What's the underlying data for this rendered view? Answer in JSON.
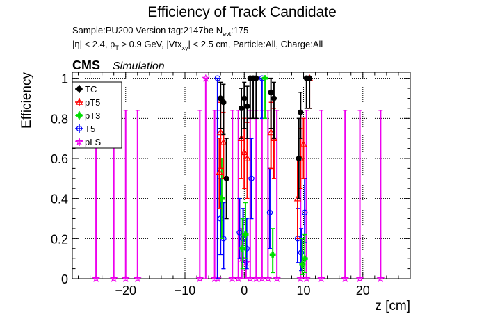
{
  "title": "Efficiency of Track Candidate",
  "subtitle_parts": {
    "sample": "Sample:PU200   Version tag:2147be  N",
    "nevt_sub": "evt",
    "nevt_val": ":175"
  },
  "cuts_parts": [
    "|η| < 2.4, p",
    "T",
    " > 0.9 GeV, |Vtx",
    "xy",
    "| < 2.5 cm, Particle:All, Charge:All"
  ],
  "cms_label": "CMS",
  "simulation_label": "Simulation",
  "colors": {
    "TC": "#000000",
    "pT5": "#ff0000",
    "pT3": "#00dd00",
    "T5": "#0000ff",
    "pLS": "#ee00ee"
  },
  "chart_data": {
    "type": "scatter",
    "title": "Efficiency of Track Candidate",
    "xlabel": "z [cm]",
    "ylabel": "Efficiency",
    "xlim": [
      -29,
      28
    ],
    "ylim": [
      0,
      1.03
    ],
    "grid": true,
    "legend_position": "top-left",
    "x_ticks": [
      -20,
      -10,
      0,
      10,
      20
    ],
    "x_tick_labels": [
      "−20",
      "−10",
      "0",
      "10",
      "20"
    ],
    "y_ticks": [
      0,
      0.2,
      0.4,
      0.6,
      0.8,
      1
    ],
    "y_tick_labels": [
      "0",
      "0.2",
      "0.4",
      "0.6",
      "0.8",
      "1"
    ],
    "series": [
      {
        "name": "TC",
        "marker": "circle-filled",
        "points": [
          {
            "x": -4.0,
            "y": 0.9,
            "lo": 0.75,
            "hi": 0.98
          },
          {
            "x": -3.5,
            "y": 0.88,
            "lo": 0.72,
            "hi": 0.97
          },
          {
            "x": -3.0,
            "y": 0.5,
            "lo": 0.3,
            "hi": 0.7
          },
          {
            "x": -0.5,
            "y": 0.85,
            "lo": 0.7,
            "hi": 0.95
          },
          {
            "x": 0.0,
            "y": 0.9,
            "lo": 0.75,
            "hi": 0.98
          },
          {
            "x": 0.5,
            "y": 0.86,
            "lo": 0.7,
            "hi": 0.96
          },
          {
            "x": 1.0,
            "y": 1.0,
            "lo": 0.8,
            "hi": 1.0
          },
          {
            "x": 1.5,
            "y": 1.0,
            "lo": 0.8,
            "hi": 1.0
          },
          {
            "x": 2.0,
            "y": 1.0,
            "lo": 0.8,
            "hi": 1.0
          },
          {
            "x": 4.5,
            "y": 0.93,
            "lo": 0.75,
            "hi": 1.0
          },
          {
            "x": 5.0,
            "y": 0.9,
            "lo": 0.7,
            "hi": 0.98
          },
          {
            "x": 9.2,
            "y": 0.6,
            "lo": 0.4,
            "hi": 0.8
          },
          {
            "x": 9.5,
            "y": 0.83,
            "lo": 0.7,
            "hi": 0.93
          },
          {
            "x": 10.5,
            "y": 1.0,
            "lo": 0.85,
            "hi": 1.0
          },
          {
            "x": 11.0,
            "y": 1.0,
            "lo": 0.85,
            "hi": 1.0
          }
        ]
      },
      {
        "name": "pT5",
        "marker": "triangle-open",
        "points": [
          {
            "x": -4.0,
            "y": 0.73,
            "lo": 0.55,
            "hi": 0.88
          },
          {
            "x": -3.5,
            "y": 0.68,
            "lo": 0.5,
            "hi": 0.83
          },
          {
            "x": -4.2,
            "y": 0.53,
            "lo": 0.35,
            "hi": 0.7
          },
          {
            "x": -0.5,
            "y": 0.7,
            "lo": 0.5,
            "hi": 0.86
          },
          {
            "x": 0.0,
            "y": 0.63,
            "lo": 0.45,
            "hi": 0.8
          },
          {
            "x": 0.5,
            "y": 0.6,
            "lo": 0.4,
            "hi": 0.78
          },
          {
            "x": 4.5,
            "y": 0.73,
            "lo": 0.55,
            "hi": 0.88
          },
          {
            "x": 5.0,
            "y": 0.7,
            "lo": 0.5,
            "hi": 0.85
          },
          {
            "x": 9.0,
            "y": 0.4,
            "lo": 0.2,
            "hi": 0.6
          },
          {
            "x": 9.5,
            "y": 0.6,
            "lo": 0.45,
            "hi": 0.75
          },
          {
            "x": 10.0,
            "y": 0.67,
            "lo": 0.5,
            "hi": 0.8
          },
          {
            "x": 11.0,
            "y": 1.0,
            "lo": 0.85,
            "hi": 1.0
          }
        ]
      },
      {
        "name": "pT3",
        "marker": "cross-filled",
        "points": [
          {
            "x": -3.8,
            "y": 0.4,
            "lo": 0.2,
            "hi": 0.6
          },
          {
            "x": -0.3,
            "y": 0.15,
            "lo": 0.05,
            "hi": 0.3
          },
          {
            "x": 0.2,
            "y": 0.22,
            "lo": 0.1,
            "hi": 0.38
          },
          {
            "x": 3.5,
            "y": 1.0,
            "lo": 0.8,
            "hi": 1.0
          },
          {
            "x": 4.8,
            "y": 0.12,
            "lo": 0.03,
            "hi": 0.25
          },
          {
            "x": 9.8,
            "y": 0.07,
            "lo": 0.02,
            "hi": 0.2
          },
          {
            "x": 10.2,
            "y": 0.1,
            "lo": 0.03,
            "hi": 0.22
          }
        ]
      },
      {
        "name": "T5",
        "marker": "circle-open",
        "points": [
          {
            "x": -4.5,
            "y": 1.0,
            "lo": 0.0,
            "hi": 1.0
          },
          {
            "x": -4.0,
            "y": 0.3,
            "lo": 0.12,
            "hi": 0.5
          },
          {
            "x": -3.5,
            "y": 0.2,
            "lo": 0.05,
            "hi": 0.38
          },
          {
            "x": -0.8,
            "y": 0.23,
            "lo": 0.1,
            "hi": 0.4
          },
          {
            "x": -0.2,
            "y": 0.2,
            "lo": 0.08,
            "hi": 0.35
          },
          {
            "x": 0.4,
            "y": 0.15,
            "lo": 0.05,
            "hi": 0.3
          },
          {
            "x": 1.2,
            "y": 0.5,
            "lo": 0.3,
            "hi": 0.7
          },
          {
            "x": 3.0,
            "y": 1.0,
            "lo": 0.8,
            "hi": 1.0
          },
          {
            "x": 4.3,
            "y": 0.33,
            "lo": 0.15,
            "hi": 0.55
          },
          {
            "x": 9.0,
            "y": 0.2,
            "lo": 0.08,
            "hi": 0.35
          },
          {
            "x": 9.6,
            "y": 0.13,
            "lo": 0.04,
            "hi": 0.25
          },
          {
            "x": 10.2,
            "y": 0.33,
            "lo": 0.18,
            "hi": 0.5
          }
        ]
      },
      {
        "name": "pLS",
        "marker": "star",
        "points": [
          {
            "x": -25.0,
            "y": 0.0,
            "lo": 0.0,
            "hi": 0.84
          },
          {
            "x": -22.0,
            "y": 0.0,
            "lo": 0.0,
            "hi": 0.84
          },
          {
            "x": -20.0,
            "y": 0.0,
            "lo": 0.0,
            "hi": 0.84
          },
          {
            "x": -18.0,
            "y": 0.0,
            "lo": 0.0,
            "hi": 0.84
          },
          {
            "x": -7.5,
            "y": 0.0,
            "lo": 0.0,
            "hi": 0.84
          },
          {
            "x": -6.5,
            "y": 1.0,
            "lo": 0.0,
            "hi": 1.0
          },
          {
            "x": -5.0,
            "y": 0.0,
            "lo": 0.0,
            "hi": 0.84
          },
          {
            "x": -4.5,
            "y": 0.0,
            "lo": 0.0,
            "hi": 0.84
          },
          {
            "x": -2.0,
            "y": 0.0,
            "lo": 0.0,
            "hi": 0.84
          },
          {
            "x": -1.0,
            "y": 0.0,
            "lo": 0.0,
            "hi": 0.84
          },
          {
            "x": -0.4,
            "y": 0.1,
            "lo": 0.0,
            "hi": 0.25
          },
          {
            "x": 0.3,
            "y": 0.08,
            "lo": 0.0,
            "hi": 0.22
          },
          {
            "x": 1.0,
            "y": 0.0,
            "lo": 0.0,
            "hi": 0.84
          },
          {
            "x": 2.0,
            "y": 0.0,
            "lo": 0.0,
            "hi": 0.84
          },
          {
            "x": 3.0,
            "y": 0.0,
            "lo": 0.0,
            "hi": 0.84
          },
          {
            "x": 4.0,
            "y": 0.0,
            "lo": 0.0,
            "hi": 0.84
          },
          {
            "x": 5.5,
            "y": 0.0,
            "lo": 0.0,
            "hi": 0.84
          },
          {
            "x": 9.5,
            "y": 0.0,
            "lo": 0.0,
            "hi": 0.84
          },
          {
            "x": 10.5,
            "y": 0.0,
            "lo": 0.0,
            "hi": 0.84
          },
          {
            "x": 13.0,
            "y": 0.0,
            "lo": 0.0,
            "hi": 0.84
          },
          {
            "x": 17.0,
            "y": 0.0,
            "lo": 0.0,
            "hi": 0.84
          },
          {
            "x": 19.5,
            "y": 0.0,
            "lo": 0.0,
            "hi": 0.84
          },
          {
            "x": 23.0,
            "y": 0.0,
            "lo": 0.0,
            "hi": 0.84
          }
        ]
      }
    ]
  }
}
